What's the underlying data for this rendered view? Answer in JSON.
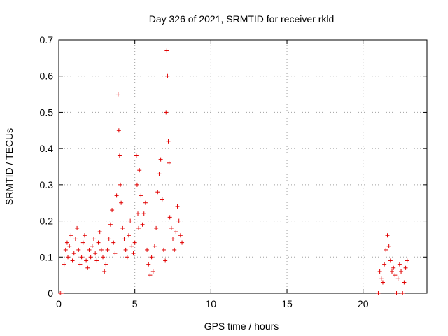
{
  "chart_data": {
    "type": "scatter",
    "title": "Day 326 of 2021, SRMTID for receiver rkld",
    "xlabel": "GPS time / hours",
    "ylabel": "SRMTID / TECUs",
    "xlim": [
      0,
      24.2
    ],
    "ylim": [
      0,
      0.7
    ],
    "x_ticks": [
      0,
      5,
      10,
      15,
      20
    ],
    "y_ticks": [
      0,
      0.1,
      0.2,
      0.3,
      0.4,
      0.5,
      0.6,
      0.7
    ],
    "x_tick_labels": [
      "0",
      "5",
      "10",
      "15",
      "20"
    ],
    "y_tick_labels": [
      "0",
      "0.1",
      "0.2",
      "0.3",
      "0.4",
      "0.5",
      "0.6",
      "0.7"
    ],
    "grid": true,
    "marker": "+",
    "color": "#e00000",
    "series": [
      {
        "name": "SRMTID",
        "x": [
          0.1,
          0.2,
          0.35,
          0.45,
          0.55,
          0.6,
          0.7,
          0.8,
          0.9,
          1.0,
          1.1,
          1.2,
          1.3,
          1.4,
          1.5,
          1.6,
          1.7,
          1.8,
          1.9,
          2.0,
          2.1,
          2.2,
          2.3,
          2.4,
          2.5,
          2.6,
          2.7,
          2.8,
          2.9,
          3.0,
          3.1,
          3.2,
          3.3,
          3.4,
          3.5,
          3.6,
          3.7,
          3.8,
          3.9,
          3.95,
          4.0,
          4.05,
          4.1,
          4.2,
          4.3,
          4.4,
          4.5,
          4.6,
          4.7,
          4.8,
          4.9,
          5.0,
          5.1,
          5.15,
          5.2,
          5.25,
          5.3,
          5.4,
          5.5,
          5.6,
          5.7,
          5.8,
          5.9,
          6.0,
          6.1,
          6.2,
          6.3,
          6.4,
          6.5,
          6.6,
          6.7,
          6.8,
          6.9,
          7.0,
          7.05,
          7.1,
          7.15,
          7.2,
          7.25,
          7.3,
          7.4,
          7.5,
          7.6,
          7.7,
          7.8,
          7.9,
          8.0,
          8.1,
          21.0,
          21.1,
          21.2,
          21.3,
          21.4,
          21.5,
          21.6,
          21.7,
          21.8,
          21.9,
          22.0,
          22.1,
          22.2,
          22.3,
          22.4,
          22.5,
          22.6,
          22.7,
          22.8,
          22.9
        ],
        "y": [
          0.0,
          0.0,
          0.08,
          0.12,
          0.14,
          0.1,
          0.13,
          0.16,
          0.09,
          0.11,
          0.15,
          0.18,
          0.12,
          0.08,
          0.1,
          0.14,
          0.16,
          0.09,
          0.07,
          0.12,
          0.1,
          0.13,
          0.15,
          0.11,
          0.09,
          0.14,
          0.17,
          0.12,
          0.1,
          0.06,
          0.08,
          0.12,
          0.15,
          0.19,
          0.23,
          0.14,
          0.11,
          0.27,
          0.55,
          0.45,
          0.38,
          0.3,
          0.25,
          0.18,
          0.15,
          0.12,
          0.1,
          0.16,
          0.2,
          0.13,
          0.11,
          0.14,
          0.38,
          0.3,
          0.22,
          0.18,
          0.34,
          0.27,
          0.19,
          0.22,
          0.25,
          0.12,
          0.08,
          0.05,
          0.1,
          0.06,
          0.13,
          0.18,
          0.28,
          0.33,
          0.37,
          0.26,
          0.12,
          0.09,
          0.5,
          0.67,
          0.6,
          0.42,
          0.36,
          0.21,
          0.18,
          0.15,
          0.12,
          0.17,
          0.24,
          0.2,
          0.16,
          0.14,
          0.0,
          0.06,
          0.04,
          0.03,
          0.08,
          0.12,
          0.16,
          0.13,
          0.09,
          0.06,
          0.07,
          0.05,
          0.0,
          0.04,
          0.08,
          0.06,
          0.0,
          0.03,
          0.07,
          0.09
        ]
      }
    ]
  }
}
